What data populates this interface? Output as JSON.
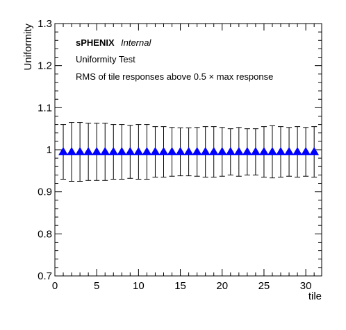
{
  "chart_data": {
    "type": "scatter",
    "title": "",
    "xlabel": "tile",
    "ylabel": "Uniformity",
    "xlim": [
      0,
      31.9
    ],
    "ylim": [
      0.7,
      1.3
    ],
    "x_ticks": [
      "0",
      "5",
      "10",
      "15",
      "20",
      "25",
      "30"
    ],
    "y_ticks": [
      "0.7",
      "0.8",
      "0.9",
      "1",
      "1.1",
      "1.2",
      "1.3"
    ],
    "grid": false,
    "legend": "none",
    "marker": "triangle-up",
    "marker_color": "#0000ff",
    "annotations": {
      "experiment": "sPHENIX",
      "status": "Internal",
      "line1": "Uniformity Test",
      "line2": "RMS of tile responses above 0.5 × max response"
    },
    "series": [
      {
        "x": [
          1,
          2,
          3,
          4,
          5,
          6,
          7,
          8,
          9,
          10,
          11,
          12,
          13,
          14,
          15,
          16,
          17,
          18,
          19,
          20,
          21,
          22,
          23,
          24,
          25,
          26,
          27,
          28,
          29,
          30,
          31
        ],
        "y": [
          0.995,
          0.995,
          0.995,
          0.995,
          0.995,
          0.995,
          0.995,
          0.995,
          0.995,
          0.995,
          0.995,
          0.995,
          0.995,
          0.995,
          0.995,
          0.995,
          0.995,
          0.995,
          0.995,
          0.995,
          0.995,
          0.995,
          0.995,
          0.995,
          0.995,
          0.995,
          0.995,
          0.995,
          0.995,
          0.995,
          0.995
        ],
        "err": [
          0.065,
          0.07,
          0.07,
          0.068,
          0.068,
          0.068,
          0.065,
          0.065,
          0.063,
          0.065,
          0.065,
          0.06,
          0.06,
          0.058,
          0.057,
          0.057,
          0.058,
          0.06,
          0.06,
          0.058,
          0.055,
          0.058,
          0.055,
          0.055,
          0.06,
          0.062,
          0.06,
          0.058,
          0.06,
          0.058,
          0.06
        ]
      }
    ]
  }
}
